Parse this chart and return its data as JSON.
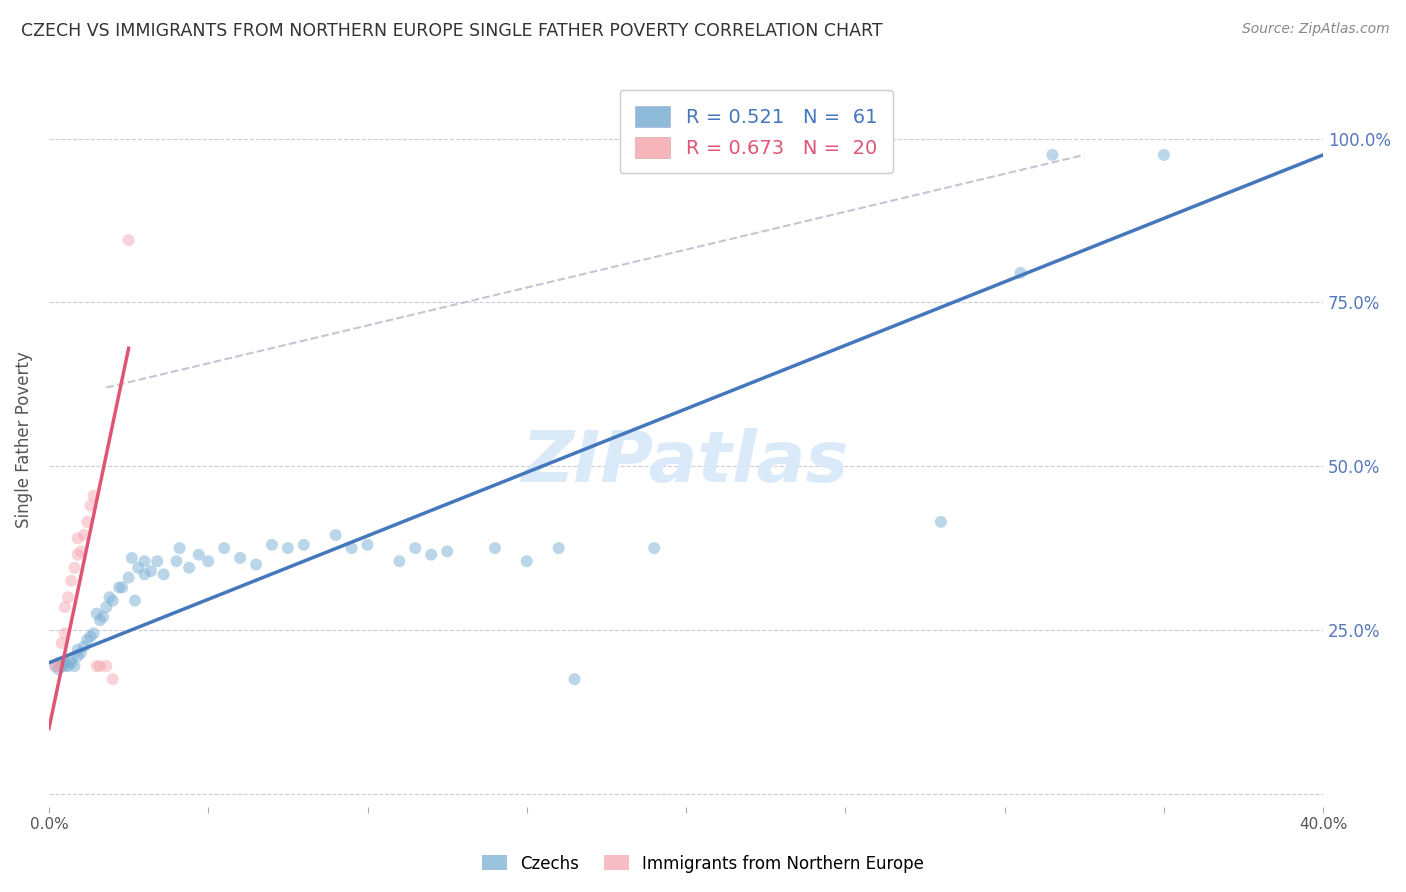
{
  "title": "CZECH VS IMMIGRANTS FROM NORTHERN EUROPE SINGLE FATHER POVERTY CORRELATION CHART",
  "source": "Source: ZipAtlas.com",
  "ylabel": "Single Father Poverty",
  "xlim": [
    0.0,
    0.4
  ],
  "ylim": [
    -0.02,
    1.1
  ],
  "y_ticks": [
    0.0,
    0.25,
    0.5,
    0.75,
    1.0
  ],
  "y_tick_labels": [
    "",
    "25.0%",
    "50.0%",
    "75.0%",
    "100.0%"
  ],
  "x_ticks": [
    0.0,
    0.05,
    0.1,
    0.15,
    0.2,
    0.25,
    0.3,
    0.35,
    0.4
  ],
  "x_tick_labels": [
    "0.0%",
    "",
    "",
    "",
    "",
    "",
    "",
    "",
    "40.0%"
  ],
  "watermark": "ZIPatlas",
  "legend_label_blue": "Czechs",
  "legend_label_pink": "Immigrants from Northern Europe",
  "blue_color": "#7BAFD4",
  "pink_color": "#F4A8B0",
  "blue_line_color": "#4477BB",
  "pink_line_color": "#E05575",
  "blue_scatter": [
    [
      0.002,
      0.195
    ],
    [
      0.003,
      0.19
    ],
    [
      0.004,
      0.195
    ],
    [
      0.004,
      0.2
    ],
    [
      0.005,
      0.195
    ],
    [
      0.005,
      0.2
    ],
    [
      0.006,
      0.195
    ],
    [
      0.007,
      0.2
    ],
    [
      0.007,
      0.205
    ],
    [
      0.008,
      0.195
    ],
    [
      0.009,
      0.21
    ],
    [
      0.009,
      0.22
    ],
    [
      0.01,
      0.215
    ],
    [
      0.011,
      0.225
    ],
    [
      0.012,
      0.235
    ],
    [
      0.013,
      0.24
    ],
    [
      0.014,
      0.245
    ],
    [
      0.015,
      0.275
    ],
    [
      0.016,
      0.265
    ],
    [
      0.017,
      0.27
    ],
    [
      0.018,
      0.285
    ],
    [
      0.019,
      0.3
    ],
    [
      0.02,
      0.295
    ],
    [
      0.022,
      0.315
    ],
    [
      0.023,
      0.315
    ],
    [
      0.025,
      0.33
    ],
    [
      0.026,
      0.36
    ],
    [
      0.027,
      0.295
    ],
    [
      0.028,
      0.345
    ],
    [
      0.03,
      0.335
    ],
    [
      0.03,
      0.355
    ],
    [
      0.032,
      0.34
    ],
    [
      0.034,
      0.355
    ],
    [
      0.036,
      0.335
    ],
    [
      0.04,
      0.355
    ],
    [
      0.041,
      0.375
    ],
    [
      0.044,
      0.345
    ],
    [
      0.047,
      0.365
    ],
    [
      0.05,
      0.355
    ],
    [
      0.055,
      0.375
    ],
    [
      0.06,
      0.36
    ],
    [
      0.065,
      0.35
    ],
    [
      0.07,
      0.38
    ],
    [
      0.075,
      0.375
    ],
    [
      0.08,
      0.38
    ],
    [
      0.09,
      0.395
    ],
    [
      0.095,
      0.375
    ],
    [
      0.1,
      0.38
    ],
    [
      0.11,
      0.355
    ],
    [
      0.115,
      0.375
    ],
    [
      0.12,
      0.365
    ],
    [
      0.125,
      0.37
    ],
    [
      0.14,
      0.375
    ],
    [
      0.15,
      0.355
    ],
    [
      0.16,
      0.375
    ],
    [
      0.165,
      0.175
    ],
    [
      0.19,
      0.375
    ],
    [
      0.28,
      0.415
    ],
    [
      0.305,
      0.795
    ],
    [
      0.315,
      0.975
    ],
    [
      0.35,
      0.975
    ]
  ],
  "pink_scatter": [
    [
      0.002,
      0.195
    ],
    [
      0.003,
      0.2
    ],
    [
      0.004,
      0.23
    ],
    [
      0.005,
      0.245
    ],
    [
      0.005,
      0.285
    ],
    [
      0.006,
      0.3
    ],
    [
      0.007,
      0.325
    ],
    [
      0.008,
      0.345
    ],
    [
      0.009,
      0.365
    ],
    [
      0.009,
      0.39
    ],
    [
      0.01,
      0.37
    ],
    [
      0.011,
      0.395
    ],
    [
      0.012,
      0.415
    ],
    [
      0.013,
      0.44
    ],
    [
      0.014,
      0.455
    ],
    [
      0.015,
      0.195
    ],
    [
      0.016,
      0.195
    ],
    [
      0.018,
      0.195
    ],
    [
      0.02,
      0.175
    ],
    [
      0.025,
      0.845
    ]
  ],
  "blue_trend_x": [
    0.0,
    0.4
  ],
  "blue_trend_y": [
    0.2,
    0.975
  ],
  "pink_trend_x": [
    0.0,
    0.025
  ],
  "pink_trend_y": [
    0.1,
    0.68
  ],
  "dashed_line_x": [
    0.018,
    0.325
  ],
  "dashed_line_y": [
    0.62,
    0.975
  ],
  "background_color": "#FFFFFF",
  "grid_color": "#CCCCDD",
  "title_color": "#333333",
  "right_axis_tick_color": "#5577BB",
  "marker_size": 75,
  "marker_alpha": 0.5
}
